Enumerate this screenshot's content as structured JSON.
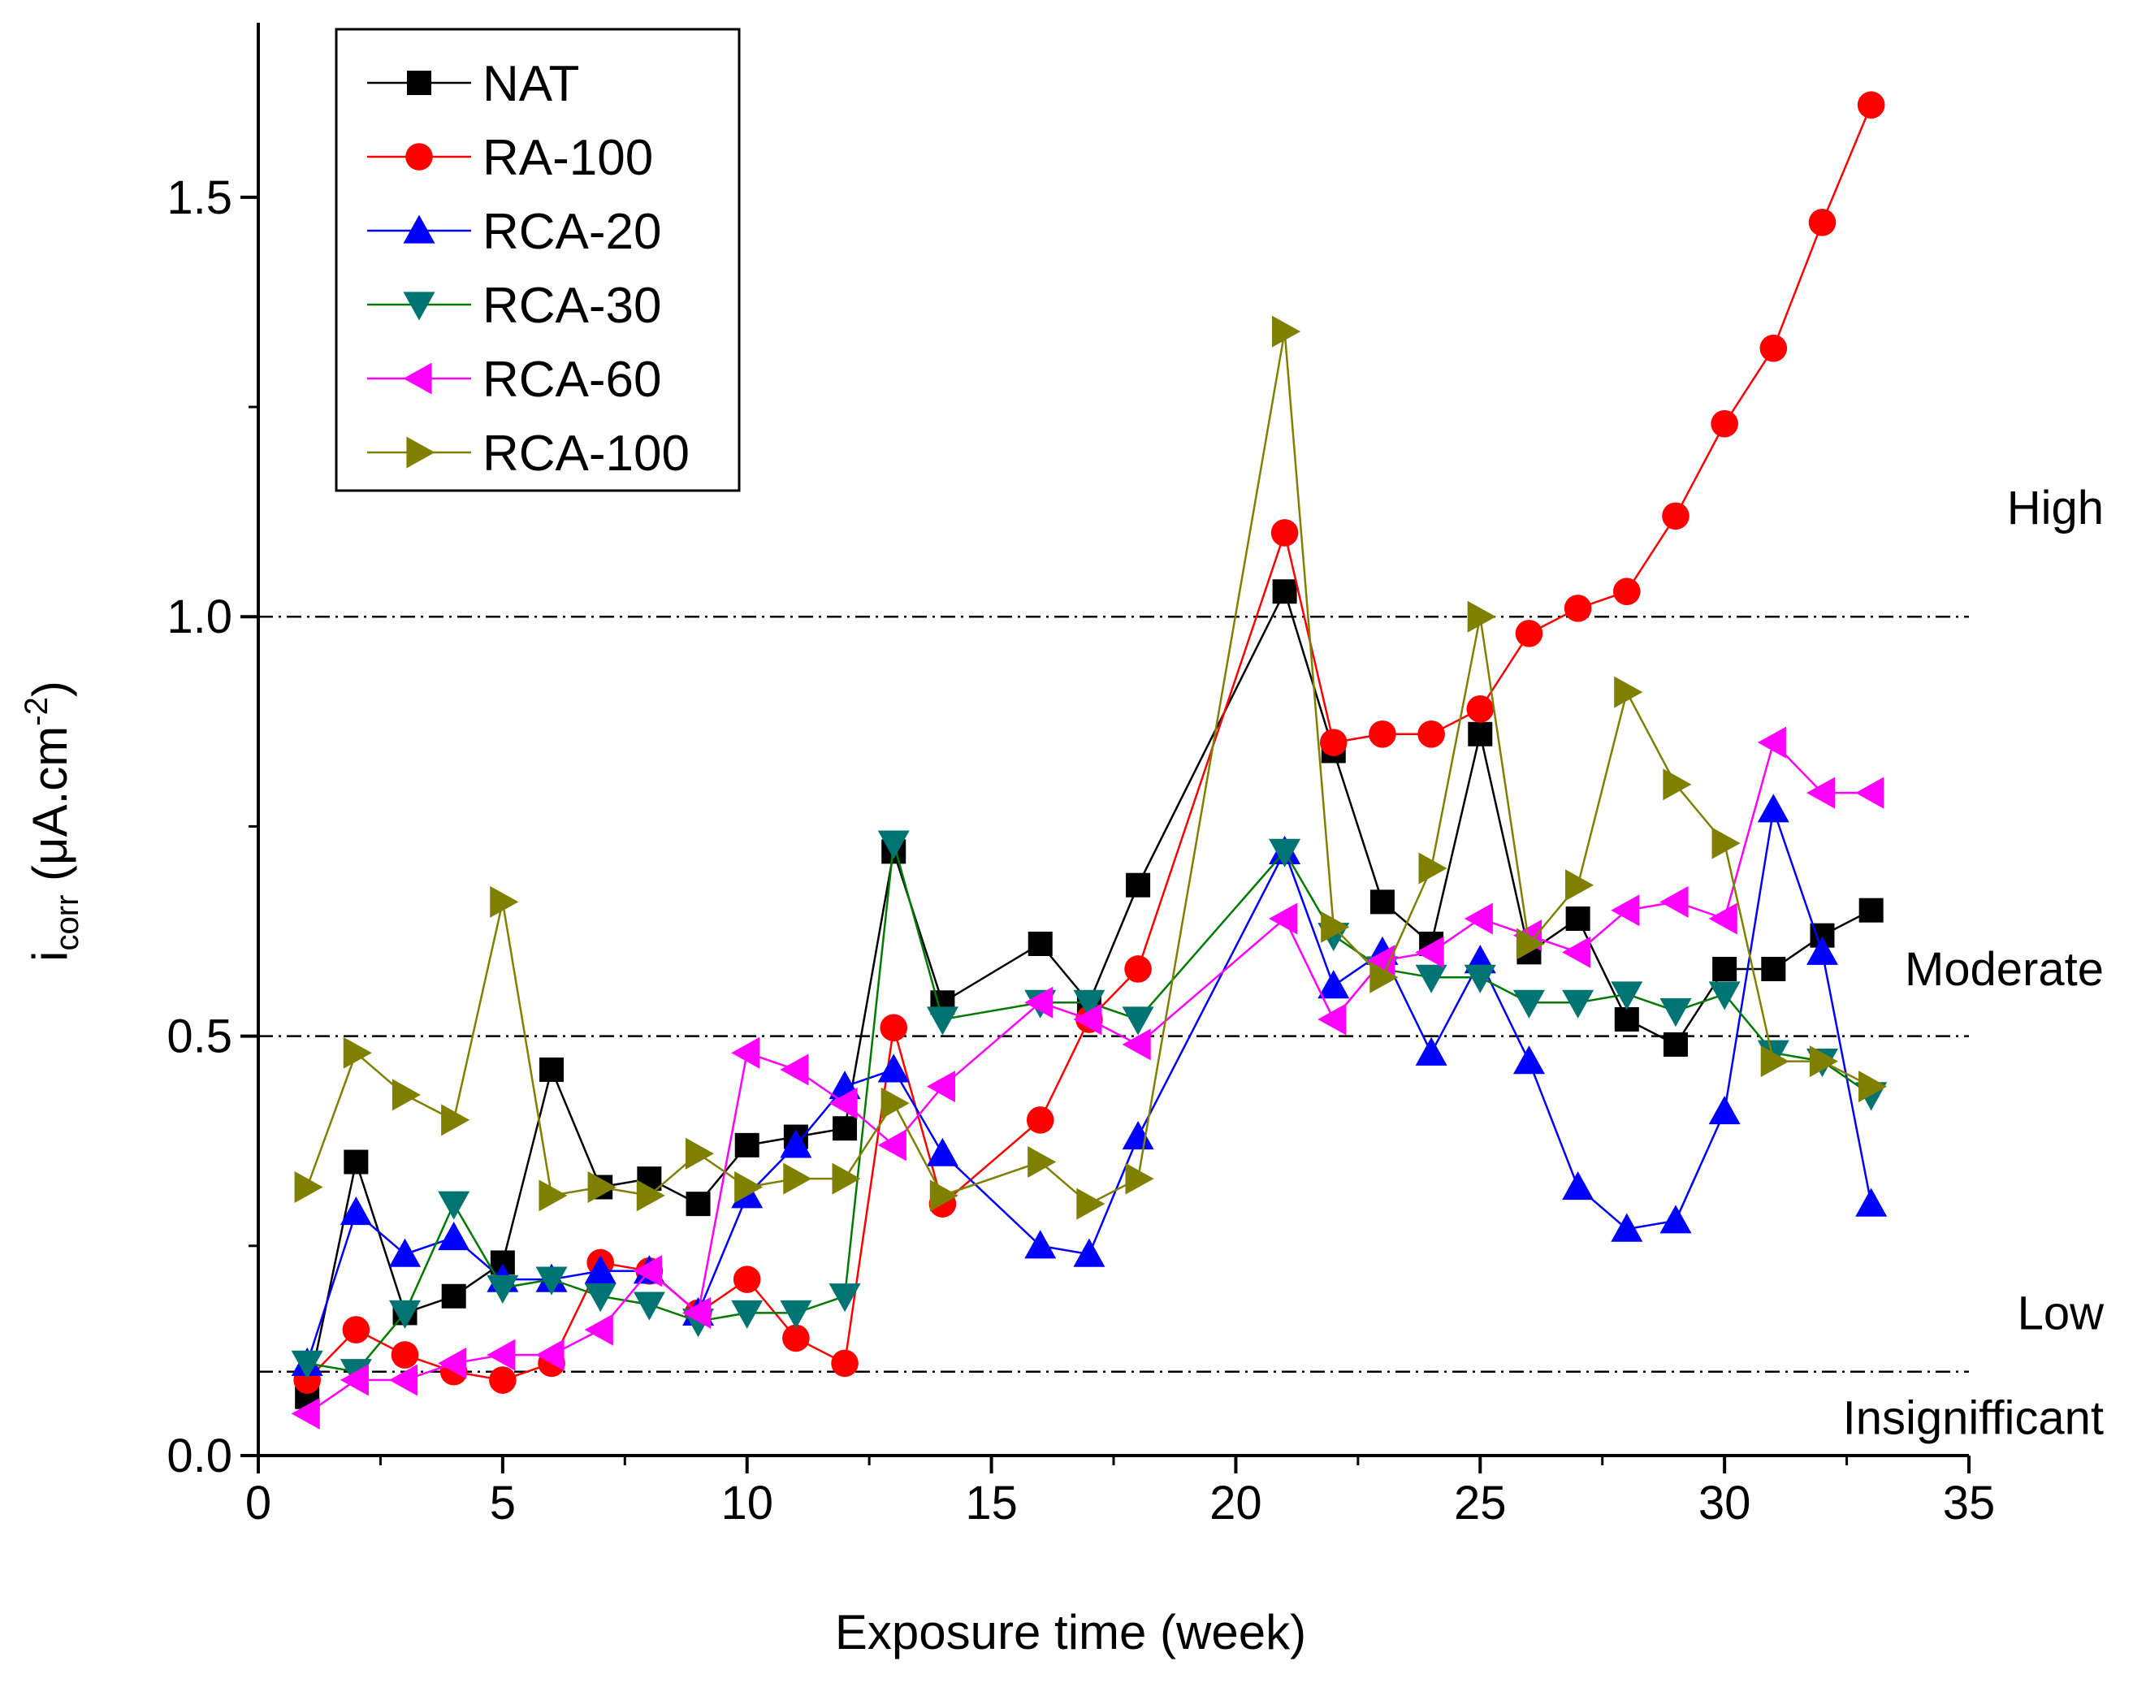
{
  "chart_data": {
    "type": "line",
    "xlabel": "Exposure time (week)",
    "ylabel": {
      "main": "i",
      "sub": "corr",
      "unit_pre": " (μA.cm",
      "sup": "-2",
      "unit_post": ")"
    },
    "xlim": [
      0,
      35
    ],
    "ylim": [
      0,
      1.7
    ],
    "x_ticks": [
      0,
      5,
      10,
      15,
      20,
      25,
      30,
      35
    ],
    "x_tick_labels": [
      "0",
      "5",
      "10",
      "15",
      "20",
      "25",
      "30",
      "35"
    ],
    "y_ticks": [
      0.0,
      0.5,
      1.0,
      1.5
    ],
    "y_tick_labels": [
      "0.0",
      "0.5",
      "1.0",
      "1.5"
    ],
    "grid": false,
    "legend_position": "top-left",
    "thresholds": [
      {
        "y": 0.1,
        "style": "dash-dot"
      },
      {
        "y": 0.5,
        "style": "dash-dot"
      },
      {
        "y": 1.0,
        "style": "dash-dot"
      }
    ],
    "zone_labels": [
      {
        "text": "High",
        "y": 1.13
      },
      {
        "text": "Moderate",
        "y": 0.58
      },
      {
        "text": "Low",
        "y": 0.17
      },
      {
        "text": "Insignifficant",
        "y": 0.045
      }
    ],
    "x": [
      1,
      2,
      3,
      4,
      5,
      6,
      7,
      8,
      9,
      10,
      11,
      12,
      13,
      14,
      15,
      16,
      17,
      18,
      19,
      20,
      21,
      22,
      23,
      24,
      25,
      26,
      27,
      28,
      29,
      30,
      31,
      32,
      33
    ],
    "series": [
      {
        "name": "NAT",
        "color": "#000000",
        "marker": "square",
        "points": [
          [
            1,
            0.07
          ],
          [
            2,
            0.35
          ],
          [
            3,
            0.17
          ],
          [
            4,
            0.19
          ],
          [
            5,
            0.23
          ],
          [
            6,
            0.46
          ],
          [
            7,
            0.32
          ],
          [
            8,
            0.33
          ],
          [
            9,
            0.3
          ],
          [
            10,
            0.37
          ],
          [
            11,
            0.38
          ],
          [
            12,
            0.39
          ],
          [
            13,
            0.72
          ],
          [
            14,
            0.54
          ],
          [
            16,
            0.61
          ],
          [
            17,
            0.54
          ],
          [
            18,
            0.68
          ],
          [
            21,
            1.03
          ],
          [
            22,
            0.84
          ],
          [
            23,
            0.66
          ],
          [
            24,
            0.61
          ],
          [
            25,
            0.86
          ],
          [
            26,
            0.6
          ],
          [
            27,
            0.64
          ],
          [
            28,
            0.52
          ],
          [
            29,
            0.49
          ],
          [
            30,
            0.58
          ],
          [
            31,
            0.58
          ],
          [
            32,
            0.62
          ],
          [
            33,
            0.65
          ]
        ]
      },
      {
        "name": "RA-100",
        "color": "#ff0000",
        "marker": "circle",
        "points": [
          [
            1,
            0.09
          ],
          [
            2,
            0.15
          ],
          [
            3,
            0.12
          ],
          [
            4,
            0.1
          ],
          [
            5,
            0.09
          ],
          [
            6,
            0.11
          ],
          [
            7,
            0.23
          ],
          [
            8,
            0.22
          ],
          [
            9,
            0.17
          ],
          [
            10,
            0.21
          ],
          [
            11,
            0.14
          ],
          [
            12,
            0.11
          ],
          [
            13,
            0.51
          ],
          [
            14,
            0.3
          ],
          [
            16,
            0.4
          ],
          [
            17,
            0.52
          ],
          [
            18,
            0.58
          ],
          [
            21,
            1.1
          ],
          [
            22,
            0.85
          ],
          [
            23,
            0.86
          ],
          [
            24,
            0.86
          ],
          [
            25,
            0.89
          ],
          [
            26,
            0.98
          ],
          [
            27,
            1.01
          ],
          [
            28,
            1.03
          ],
          [
            29,
            1.12
          ],
          [
            30,
            1.23
          ],
          [
            31,
            1.32
          ],
          [
            32,
            1.47
          ],
          [
            33,
            1.61
          ]
        ]
      },
      {
        "name": "RCA-20",
        "color": "#0000ff",
        "marker": "triangle-up",
        "points": [
          [
            1,
            0.11
          ],
          [
            2,
            0.29
          ],
          [
            3,
            0.24
          ],
          [
            4,
            0.26
          ],
          [
            5,
            0.21
          ],
          [
            6,
            0.21
          ],
          [
            7,
            0.22
          ],
          [
            8,
            0.22
          ],
          [
            9,
            0.17
          ],
          [
            10,
            0.31
          ],
          [
            11,
            0.37
          ],
          [
            12,
            0.44
          ],
          [
            13,
            0.46
          ],
          [
            14,
            0.36
          ],
          [
            16,
            0.25
          ],
          [
            17,
            0.24
          ],
          [
            18,
            0.38
          ],
          [
            21,
            0.72
          ],
          [
            22,
            0.56
          ],
          [
            23,
            0.6
          ],
          [
            24,
            0.48
          ],
          [
            25,
            0.59
          ],
          [
            26,
            0.47
          ],
          [
            27,
            0.32
          ],
          [
            28,
            0.27
          ],
          [
            29,
            0.28
          ],
          [
            30,
            0.41
          ],
          [
            31,
            0.77
          ],
          [
            32,
            0.6
          ],
          [
            33,
            0.3
          ]
        ]
      },
      {
        "name": "RCA-30",
        "color": "#007373",
        "line_color": "#007a00",
        "marker": "triangle-down",
        "points": [
          [
            1,
            0.11
          ],
          [
            2,
            0.1
          ],
          [
            3,
            0.17
          ],
          [
            4,
            0.3
          ],
          [
            5,
            0.2
          ],
          [
            6,
            0.21
          ],
          [
            7,
            0.19
          ],
          [
            8,
            0.18
          ],
          [
            9,
            0.16
          ],
          [
            10,
            0.17
          ],
          [
            11,
            0.17
          ],
          [
            12,
            0.19
          ],
          [
            13,
            0.73
          ],
          [
            14,
            0.52
          ],
          [
            16,
            0.54
          ],
          [
            17,
            0.54
          ],
          [
            18,
            0.52
          ],
          [
            21,
            0.72
          ],
          [
            22,
            0.62
          ],
          [
            23,
            0.58
          ],
          [
            24,
            0.57
          ],
          [
            25,
            0.57
          ],
          [
            26,
            0.54
          ],
          [
            27,
            0.54
          ],
          [
            28,
            0.55
          ],
          [
            29,
            0.53
          ],
          [
            30,
            0.55
          ],
          [
            31,
            0.48
          ],
          [
            32,
            0.47
          ],
          [
            33,
            0.43
          ]
        ]
      },
      {
        "name": "RCA-60",
        "color": "#ff00ff",
        "marker": "triangle-left",
        "points": [
          [
            1,
            0.05
          ],
          [
            2,
            0.09
          ],
          [
            3,
            0.09
          ],
          [
            4,
            0.11
          ],
          [
            5,
            0.12
          ],
          [
            6,
            0.12
          ],
          [
            7,
            0.15
          ],
          [
            8,
            0.22
          ],
          [
            9,
            0.17
          ],
          [
            10,
            0.48
          ],
          [
            11,
            0.46
          ],
          [
            12,
            0.42
          ],
          [
            13,
            0.37
          ],
          [
            14,
            0.44
          ],
          [
            16,
            0.54
          ],
          [
            17,
            0.52
          ],
          [
            18,
            0.49
          ],
          [
            21,
            0.64
          ],
          [
            22,
            0.52
          ],
          [
            23,
            0.59
          ],
          [
            24,
            0.6
          ],
          [
            25,
            0.64
          ],
          [
            26,
            0.62
          ],
          [
            27,
            0.6
          ],
          [
            28,
            0.65
          ],
          [
            29,
            0.66
          ],
          [
            30,
            0.64
          ],
          [
            31,
            0.85
          ],
          [
            32,
            0.79
          ],
          [
            33,
            0.79
          ]
        ]
      },
      {
        "name": "RCA-100",
        "color": "#808000",
        "marker": "triangle-right",
        "points": [
          [
            1,
            0.32
          ],
          [
            2,
            0.48
          ],
          [
            3,
            0.43
          ],
          [
            4,
            0.4
          ],
          [
            5,
            0.66
          ],
          [
            6,
            0.31
          ],
          [
            7,
            0.32
          ],
          [
            8,
            0.31
          ],
          [
            9,
            0.36
          ],
          [
            10,
            0.32
          ],
          [
            11,
            0.33
          ],
          [
            12,
            0.33
          ],
          [
            13,
            0.42
          ],
          [
            14,
            0.31
          ],
          [
            16,
            0.35
          ],
          [
            17,
            0.3
          ],
          [
            18,
            0.33
          ],
          [
            21,
            1.34
          ],
          [
            22,
            0.63
          ],
          [
            23,
            0.57
          ],
          [
            24,
            0.7
          ],
          [
            25,
            1.0
          ],
          [
            26,
            0.61
          ],
          [
            27,
            0.68
          ],
          [
            28,
            0.91
          ],
          [
            29,
            0.8
          ],
          [
            30,
            0.73
          ],
          [
            31,
            0.47
          ],
          [
            32,
            0.47
          ],
          [
            33,
            0.44
          ]
        ]
      }
    ]
  }
}
